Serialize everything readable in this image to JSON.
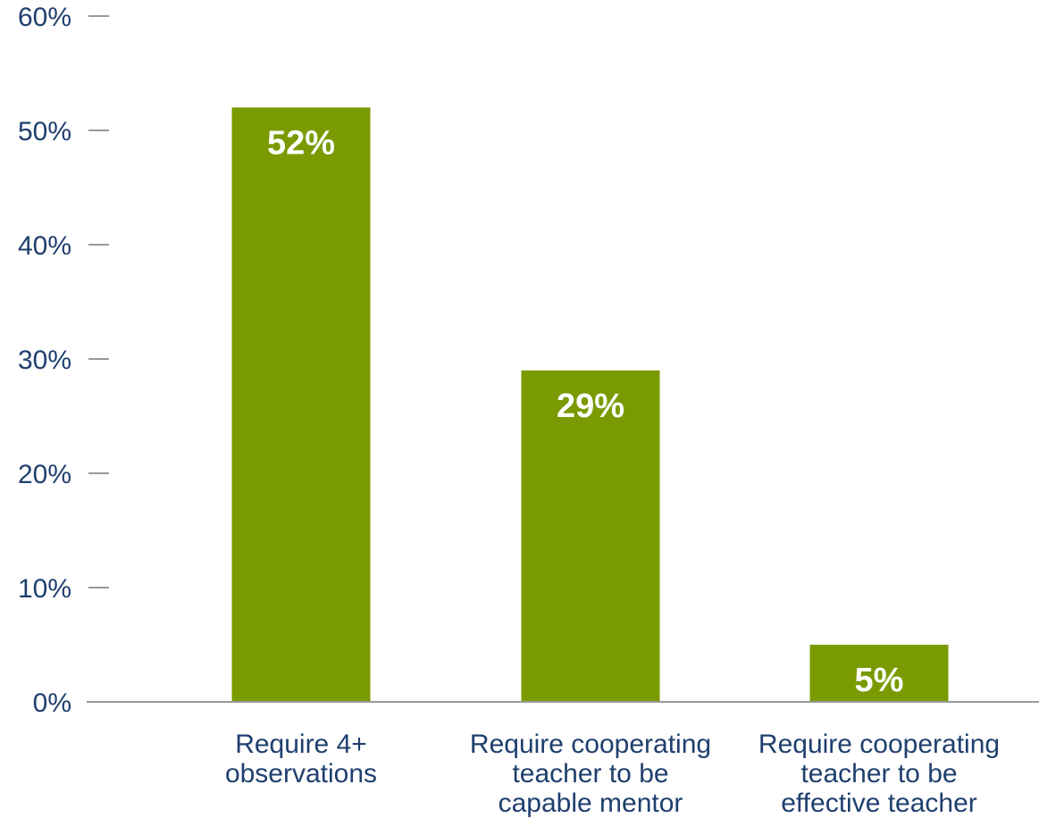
{
  "chart_data": {
    "type": "bar",
    "categories": [
      [
        "Require 4+",
        "observations"
      ],
      [
        "Require cooperating",
        "teacher to be",
        "capable mentor"
      ],
      [
        "Require cooperating",
        "teacher to be",
        "effective teacher"
      ]
    ],
    "values": [
      52,
      29,
      5
    ],
    "data_labels": [
      "52%",
      "29%",
      "5%"
    ],
    "ylim": [
      0,
      60
    ],
    "yticks": [
      0,
      10,
      20,
      30,
      40,
      50,
      60
    ],
    "ytick_labels": [
      "0%",
      "10%",
      "20%",
      "30%",
      "40%",
      "50%",
      "60%"
    ],
    "grid": false,
    "legend": "none",
    "colors": {
      "bar": "#7a9a01",
      "text": "#1f3f6e",
      "axis": "#999999",
      "data_label": "#ffffff"
    }
  }
}
